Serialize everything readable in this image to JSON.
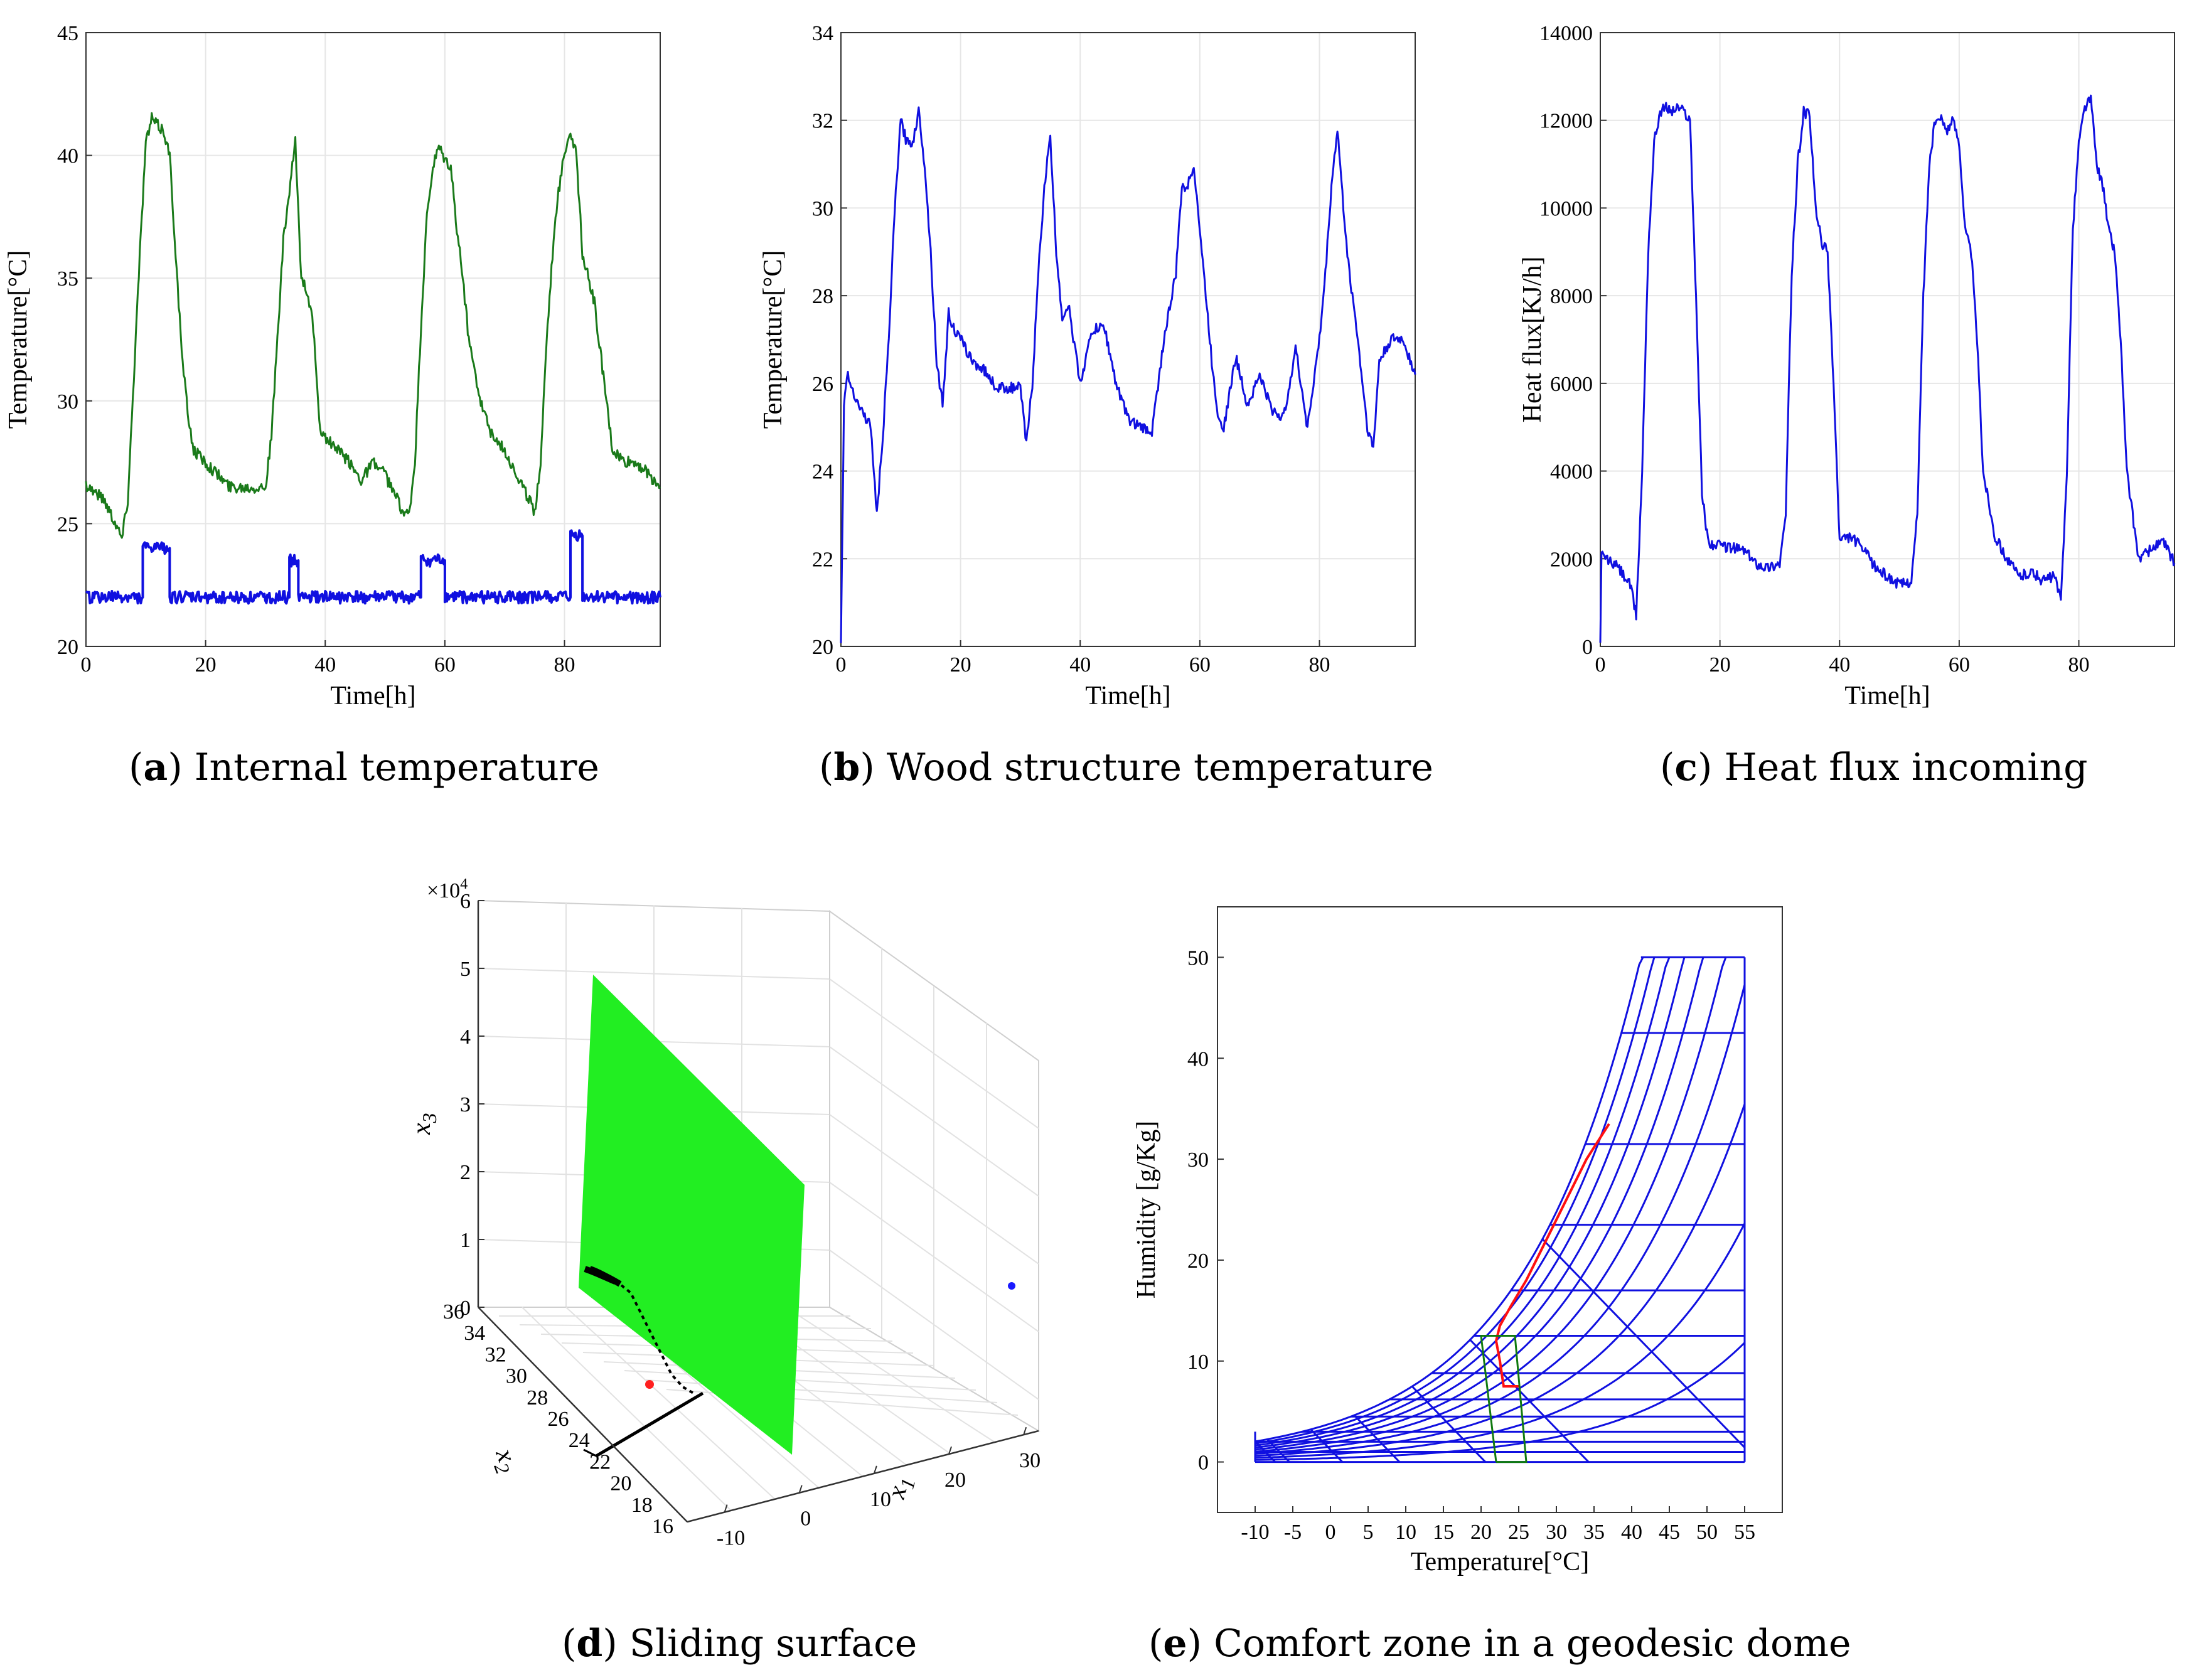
{
  "panels": {
    "a": {
      "letter": "a",
      "caption": "Internal temperature",
      "chart_data": {
        "type": "line",
        "title": "",
        "xlabel": "Time[h]",
        "ylabel": "Temperature[°C]",
        "xlim": [
          0,
          96
        ],
        "ylim": [
          20,
          45
        ],
        "xticks": [
          "0",
          "20",
          "40",
          "60",
          "80"
        ],
        "yticks": [
          "20",
          "25",
          "30",
          "35",
          "40",
          "45"
        ],
        "series": [
          {
            "name": "internal",
            "color": "#1a7a1a",
            "x": [
              0,
              3,
              5,
              6,
              7,
              8,
              9,
              10,
              11,
              12,
              13,
              14,
              15,
              16,
              17,
              18,
              20,
              24,
              28,
              30,
              31,
              32,
              33,
              34,
              35,
              36,
              37,
              38,
              39,
              40,
              42,
              44,
              46,
              48,
              50,
              52,
              53,
              54,
              55,
              56,
              57,
              58,
              59,
              60,
              61,
              62,
              63,
              64,
              66,
              68,
              70,
              72,
              74,
              75,
              76,
              77,
              78,
              79,
              80,
              81,
              82,
              83,
              84,
              85,
              86,
              87,
              88,
              90,
              92,
              94,
              96
            ],
            "y": [
              26.6,
              26,
              25,
              24.4,
              26,
              31,
              36,
              40.5,
              41.5,
              41.2,
              41,
              40,
              36,
              32,
              29.5,
              28,
              27.5,
              26.5,
              26.5,
              26.5,
              28.5,
              32.5,
              36.5,
              38.5,
              40.5,
              35,
              34.5,
              33,
              29,
              28.5,
              28,
              27.5,
              26.8,
              27.5,
              27,
              26,
              25.5,
              25.3,
              27.5,
              33,
              37.5,
              39.5,
              40.3,
              39.8,
              39.5,
              37,
              35,
              32.5,
              30,
              28.5,
              28,
              27,
              26,
              25.5,
              27.5,
              32.5,
              36,
              38.5,
              40.2,
              41,
              40,
              36,
              35,
              34,
              32,
              30,
              28,
              27.5,
              27.5,
              27,
              26.5
            ]
          },
          {
            "name": "setpoint",
            "color": "#1010e0",
            "x": [
              0,
              9.5,
              9.5,
              14,
              14,
              34,
              34,
              35.5,
              35.5,
              56,
              56,
              60,
              60,
              81,
              81,
              83,
              83,
              96
            ],
            "y": [
              22,
              22,
              24,
              24,
              22,
              22,
              23.5,
              23.5,
              22,
              22,
              23.5,
              23.5,
              22,
              22,
              24.5,
              24.5,
              22,
              22
            ]
          }
        ]
      }
    },
    "b": {
      "letter": "b",
      "caption": "Wood structure temperature",
      "chart_data": {
        "type": "line",
        "title": "",
        "xlabel": "Time[h]",
        "ylabel": "Temperature[°C]",
        "xlim": [
          0,
          96
        ],
        "ylim": [
          20,
          34
        ],
        "xticks": [
          "0",
          "20",
          "40",
          "60",
          "80"
        ],
        "yticks": [
          "20",
          "22",
          "24",
          "26",
          "28",
          "30",
          "32",
          "34"
        ],
        "series": [
          {
            "name": "wood",
            "color": "#1010e0",
            "x": [
              0,
              0.5,
              1,
              3,
              5,
              6,
              7,
              8,
              9,
              10,
              11,
              12,
              13,
              14,
              15,
              16,
              17,
              18,
              19,
              20,
              22,
              24,
              26,
              28,
              30,
              31,
              32,
              33,
              34,
              35,
              36,
              37,
              38,
              40,
              42,
              44,
              46,
              48,
              50,
              52,
              54,
              56,
              57,
              58,
              59,
              60,
              61,
              62,
              63,
              64,
              66,
              68,
              70,
              72,
              74,
              76,
              78,
              80,
              81,
              82,
              83,
              84,
              85,
              86,
              88,
              89,
              90,
              92,
              94,
              96
            ],
            "y": [
              20,
              25.5,
              26.2,
              25.5,
              25,
              23,
              24.8,
              27,
              30,
              32,
              31.5,
              31.5,
              32.2,
              31,
              29,
              26.5,
              25.5,
              27.6,
              27.2,
              27,
              26.5,
              26.3,
              25.9,
              25.9,
              25.9,
              24.6,
              26,
              28.5,
              30.5,
              31.6,
              29,
              27.5,
              27.8,
              26,
              27.2,
              27.3,
              26,
              25.2,
              25,
              24.9,
              27,
              28.5,
              30.5,
              30.5,
              31,
              29.5,
              28,
              26.5,
              25.3,
              25,
              26.6,
              25.5,
              26.2,
              25.4,
              25.2,
              26.8,
              25,
              27,
              28.5,
              30.5,
              31.8,
              30,
              28.5,
              27.5,
              25,
              24.5,
              26.5,
              27,
              27,
              26.2
            ]
          }
        ]
      }
    },
    "c": {
      "letter": "c",
      "caption": "Heat flux incoming",
      "chart_data": {
        "type": "line",
        "title": "",
        "xlabel": "Time[h]",
        "ylabel": "Heat flux[KJ/h]",
        "xlim": [
          0,
          96
        ],
        "ylim": [
          0,
          14000
        ],
        "xticks": [
          "0",
          "20",
          "40",
          "60",
          "80"
        ],
        "yticks": [
          "0",
          "2000",
          "4000",
          "6000",
          "8000",
          "10000",
          "12000",
          "14000"
        ],
        "series": [
          {
            "name": "heat_flux",
            "color": "#1010e0",
            "x": [
              0,
              0.2,
              1,
              3,
              5,
              6,
              7,
              8,
              9,
              10,
              11,
              12,
              13,
              14,
              15,
              16,
              17,
              18,
              19,
              20,
              24,
              26,
              28,
              30,
              31,
              32,
              33,
              34,
              35,
              36,
              37,
              38,
              39,
              40,
              42,
              44,
              46,
              48,
              50,
              52,
              53,
              54,
              55,
              56,
              57,
              58,
              59,
              60,
              61,
              62,
              63,
              64,
              66,
              68,
              70,
              72,
              74,
              76,
              77,
              78,
              79,
              80,
              81,
              82,
              83,
              84,
              85,
              86,
              87,
              88,
              90,
              92,
              94,
              96
            ],
            "y": [
              0,
              2100,
              2000,
              1800,
              1400,
              700,
              4000,
              9000,
              11500,
              12200,
              12300,
              12200,
              12300,
              12200,
              12000,
              8000,
              3500,
              2400,
              2300,
              2300,
              2200,
              1900,
              1800,
              1900,
              3000,
              8500,
              11000,
              12200,
              12100,
              10000,
              9200,
              9000,
              6000,
              2400,
              2500,
              2200,
              1800,
              1600,
              1400,
              1500,
              3000,
              8000,
              11000,
              12000,
              12000,
              11800,
              12000,
              11500,
              9500,
              9000,
              7000,
              4000,
              2500,
              2000,
              1600,
              1700,
              1500,
              1600,
              1000,
              4000,
              9500,
              11500,
              12300,
              12500,
              11000,
              10500,
              9500,
              9000,
              7000,
              4000,
              2000,
              2200,
              2400,
              1900
            ]
          }
        ]
      }
    },
    "d": {
      "letter": "d",
      "caption": "Sliding surface",
      "chart_data": {
        "type": "scatter",
        "title": "",
        "xlabel": "x1",
        "ylabel": "x2",
        "zlabel": "x3",
        "z_multiplier": "×10^4",
        "xlim": [
          -10,
          30
        ],
        "ylim": [
          16,
          36
        ],
        "zlim": [
          0,
          6
        ],
        "xticks": [
          "-10",
          "0",
          "10",
          "20",
          "30"
        ],
        "yticks": [
          "16",
          "18",
          "20",
          "22",
          "24",
          "26",
          "28",
          "30",
          "32",
          "34",
          "36"
        ],
        "zticks": [
          "0",
          "1",
          "2",
          "3",
          "4",
          "5",
          "6"
        ],
        "series": [
          {
            "name": "sliding surface",
            "color": "#22ee22"
          },
          {
            "name": "trajectory",
            "color": "#000000"
          },
          {
            "name": "initial point",
            "color": "#ff2020"
          },
          {
            "name": "target point",
            "color": "#1a1aff"
          }
        ]
      }
    },
    "e": {
      "letter": "e",
      "caption": "Comfort zone in a geodesic dome",
      "chart_data": {
        "type": "line",
        "title": "",
        "xlabel": "Temperature[°C]",
        "ylabel": "Humidity [g/Kg]",
        "xlim": [
          -15,
          60
        ],
        "ylim": [
          -5,
          55
        ],
        "xticks": [
          "-10",
          "-5",
          "0",
          "5",
          "10",
          "15",
          "20",
          "25",
          "30",
          "35",
          "40",
          "45",
          "50",
          "55"
        ],
        "yticks": [
          "0",
          "10",
          "20",
          "30",
          "40",
          "50"
        ],
        "series": [
          {
            "name": "psychrometric grid",
            "color": "#1010e0"
          },
          {
            "name": "trajectory",
            "color": "#ff1010",
            "x": [
              37,
              34,
              31,
              28,
              26,
              24,
              22.5,
              22,
              22.5,
              23,
              25
            ],
            "y": [
              33.5,
              30,
              25.5,
              21,
              18,
              15.5,
              13.5,
              12,
              10,
              7.5,
              7.5
            ]
          },
          {
            "name": "comfort zone",
            "color": "#107a10",
            "x": [
              22,
              20,
              24.5,
              26,
              22
            ],
            "y": [
              0,
              12.5,
              12.5,
              0,
              0
            ]
          }
        ]
      }
    }
  }
}
